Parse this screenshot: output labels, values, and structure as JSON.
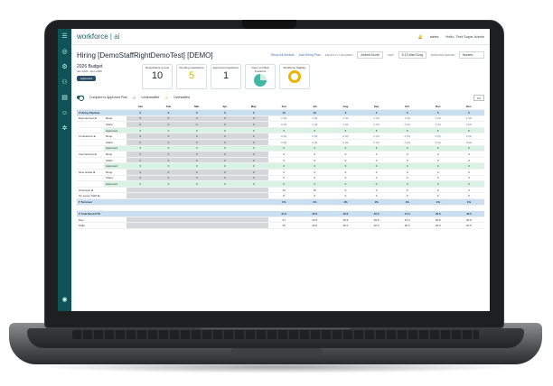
{
  "app": {
    "logo_main": "workforce",
    "logo_sub": "| ai"
  },
  "topbar": {
    "bell": "alerts",
    "user": "Hello, Test Super Admin"
  },
  "page": {
    "title": "Hiring [DemoStaffRightDemoTest] [DEMO]",
    "show_all_models": "Show All Models",
    "add_hiring_plan": "Add Hiring Plan",
    "facility_label": "FACILITY / LOCATION",
    "facility_value": "Abbott South",
    "unit_label": "UNIT",
    "unit_value": "5-10 Med Surg",
    "position_group_label": "POSITION GROUP",
    "position_group_value": "Nurses"
  },
  "budget": {
    "title": "2026 Budget",
    "range": "Jan 2026 - Dec 2026",
    "status": "Approved"
  },
  "cards": [
    {
      "label": "Requisitions to post",
      "value": "10"
    },
    {
      "label": "Pending requisitions",
      "value": "5"
    },
    {
      "label": "Approved requisitions",
      "value": "1"
    },
    {
      "label": "Open vs Filled Positions",
      "value": ""
    },
    {
      "label": "Workforce Stability",
      "value": ""
    }
  ],
  "compare": {
    "label": "Compare to Approved Plan",
    "legend_a": "Understaffed",
    "legend_b": "Overstaffed",
    "more": "•••"
  },
  "table": {
    "months": [
      "Jan",
      "Feb",
      "Mar",
      "Apr",
      "May",
      "Jun",
      "Jul",
      "Aug",
      "Sep",
      "Oct",
      "Nov",
      "Dec"
    ],
    "sections": {
      "hiring": {
        "label": "Hiring Pipeline",
        "values": [
          "0",
          "0",
          "0",
          "0",
          "0",
          "10",
          "10",
          "5",
          "5",
          "5",
          "5",
          "5"
        ]
      },
      "turnover": {
        "label": "Turnover",
        "values": [
          "",
          "",
          "",
          "",
          "",
          "1%",
          "1%",
          "1%",
          "1%",
          "1%",
          "1%",
          "1%"
        ]
      },
      "fte": {
        "label": "Total Need FTE",
        "values": [
          "",
          "",
          "",
          "",
          "",
          "41.0",
          "40.5",
          "40.5",
          "40.5",
          "41.0",
          "40.5",
          "40.5"
        ]
      }
    },
    "rows": [
      {
        "name": "Experienced",
        "kind": "Reqs",
        "values": [
          "0",
          "0",
          "0",
          "0",
          "0",
          "2 (0)",
          "1 (0)",
          "1 (0)",
          "1 (0)",
          "1 (0)",
          "1 (0)",
          "1 (0)"
        ]
      },
      {
        "name": "",
        "kind": "Starts",
        "values": [
          "0",
          "0",
          "0",
          "0",
          "0",
          "0 (0)",
          "1 (0)",
          "1 (0)",
          "0 (0)",
          "0 (0)",
          "1 (0)",
          "0 (0)"
        ]
      },
      {
        "name": "",
        "kind": "Approved",
        "values": [
          "0",
          "0",
          "0",
          "0",
          "0",
          "5",
          "5",
          "5",
          "5",
          "5",
          "5",
          "5"
        ]
      },
      {
        "name": "Contractors",
        "kind": "Reqs",
        "values": [
          "0",
          "0",
          "0",
          "0",
          "0",
          "0 (0)",
          "0 (0)",
          "0 (0)",
          "0 (0)",
          "0 (0)",
          "0 (0)",
          "0 (0)"
        ]
      },
      {
        "name": "",
        "kind": "Starts",
        "values": [
          "0",
          "0",
          "0",
          "0",
          "0",
          "0 (0)",
          "0 (0)",
          "0 (0)",
          "0 (0)",
          "0 (0)",
          "0 (0)",
          "0 (0)"
        ]
      },
      {
        "name": "",
        "kind": "Approved",
        "values": [
          "0",
          "0",
          "0",
          "0",
          "0",
          "6",
          "6",
          "6",
          "6",
          "6",
          "6",
          "6"
        ]
      },
      {
        "name": "International",
        "kind": "Reqs",
        "values": [
          "0",
          "0",
          "0",
          "0",
          "0",
          "0",
          "0",
          "0",
          "0",
          "0",
          "0",
          "0"
        ]
      },
      {
        "name": "",
        "kind": "Starts",
        "values": [
          "0",
          "0",
          "0",
          "0",
          "0",
          "0",
          "0",
          "0",
          "0",
          "0",
          "0",
          "0"
        ]
      },
      {
        "name": "",
        "kind": "Approved",
        "values": [
          "0",
          "0",
          "0",
          "0",
          "0",
          "0",
          "0",
          "0",
          "0",
          "0",
          "0",
          "0"
        ]
      },
      {
        "name": "New Grads",
        "kind": "Reqs",
        "values": [
          "0",
          "0",
          "0",
          "0",
          "0",
          "0",
          "0",
          "0",
          "0",
          "0",
          "0",
          "0"
        ]
      },
      {
        "name": "",
        "kind": "Starts",
        "values": [
          "0",
          "0",
          "0",
          "0",
          "0",
          "0",
          "0",
          "0",
          "0",
          "0",
          "0",
          "0"
        ]
      },
      {
        "name": "",
        "kind": "Approved",
        "values": [
          "0",
          "0",
          "0",
          "0",
          "0",
          "0",
          "0",
          "0",
          "0",
          "0",
          "0",
          "0"
        ]
      },
      {
        "name": "Orientees",
        "kind": "",
        "values": [
          "",
          "",
          "",
          "",
          "",
          "10",
          "10",
          "0",
          "0",
          "0",
          "0",
          "0"
        ]
      },
      {
        "name": "On Leave Staff",
        "kind": "",
        "values": [
          "",
          "",
          "",
          "",
          "",
          "0",
          "0",
          "0",
          "0",
          "0",
          "0",
          "0"
        ]
      }
    ],
    "fte_rows": [
      {
        "name": "Day",
        "values": [
          "",
          "",
          "",
          "",
          "",
          "21",
          "20.5",
          "20.5",
          "20.5",
          "21.0",
          "20.5",
          "20.5"
        ]
      },
      {
        "name": "Night",
        "values": [
          "",
          "",
          "",
          "",
          "",
          "20",
          "20.0",
          "20.0",
          "20.0",
          "20.0",
          "20.0",
          "20.0"
        ]
      }
    ]
  }
}
